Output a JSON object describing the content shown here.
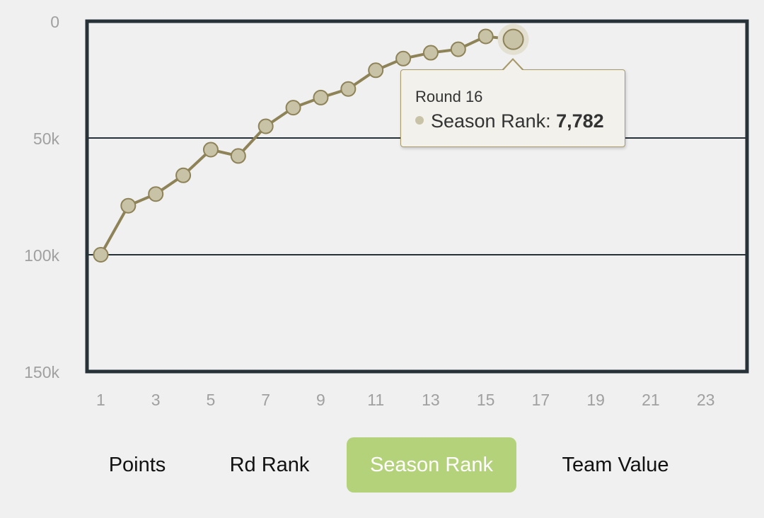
{
  "chart_data": {
    "type": "line",
    "y_reversed": true,
    "ylim": [
      0,
      150000
    ],
    "xlim": [
      0.5,
      24.5
    ],
    "yticks": [
      0,
      50000,
      100000,
      150000
    ],
    "ytick_labels": [
      "0",
      "50k",
      "100k",
      "150k"
    ],
    "xticks": [
      1,
      3,
      5,
      7,
      9,
      11,
      13,
      15,
      17,
      19,
      21,
      23
    ],
    "xtick_labels": [
      "1",
      "3",
      "5",
      "7",
      "9",
      "11",
      "13",
      "15",
      "17",
      "19",
      "21",
      "23"
    ],
    "grid": "horizontal",
    "series": [
      {
        "x": [
          1,
          2,
          3,
          4,
          5,
          6,
          7,
          8,
          9,
          10,
          11,
          12,
          13,
          14,
          15,
          16
        ],
        "values": [
          100000,
          79000,
          74000,
          66000,
          55000,
          57700,
          45000,
          37000,
          32700,
          29000,
          21000,
          16000,
          13500,
          12000,
          6500,
          7782
        ],
        "color": "#8e8257",
        "marker_fill": "#c8c2a6"
      }
    ],
    "highlight_index": 15,
    "colors": {
      "frame": "#263238",
      "tick_text": "#a0a0a0",
      "line": "#8e8257",
      "marker": "#c8c2a6",
      "tooltip_border": "#a7996a"
    }
  },
  "tooltip": {
    "title": "Round 16",
    "label": "Season Rank: ",
    "value": "7,782"
  },
  "tabs": [
    {
      "label": "Points",
      "active": false
    },
    {
      "label": "Rd Rank",
      "active": false
    },
    {
      "label": "Season Rank",
      "active": true
    },
    {
      "label": "Team Value",
      "active": false
    }
  ],
  "accent_color": "#b3d27a"
}
